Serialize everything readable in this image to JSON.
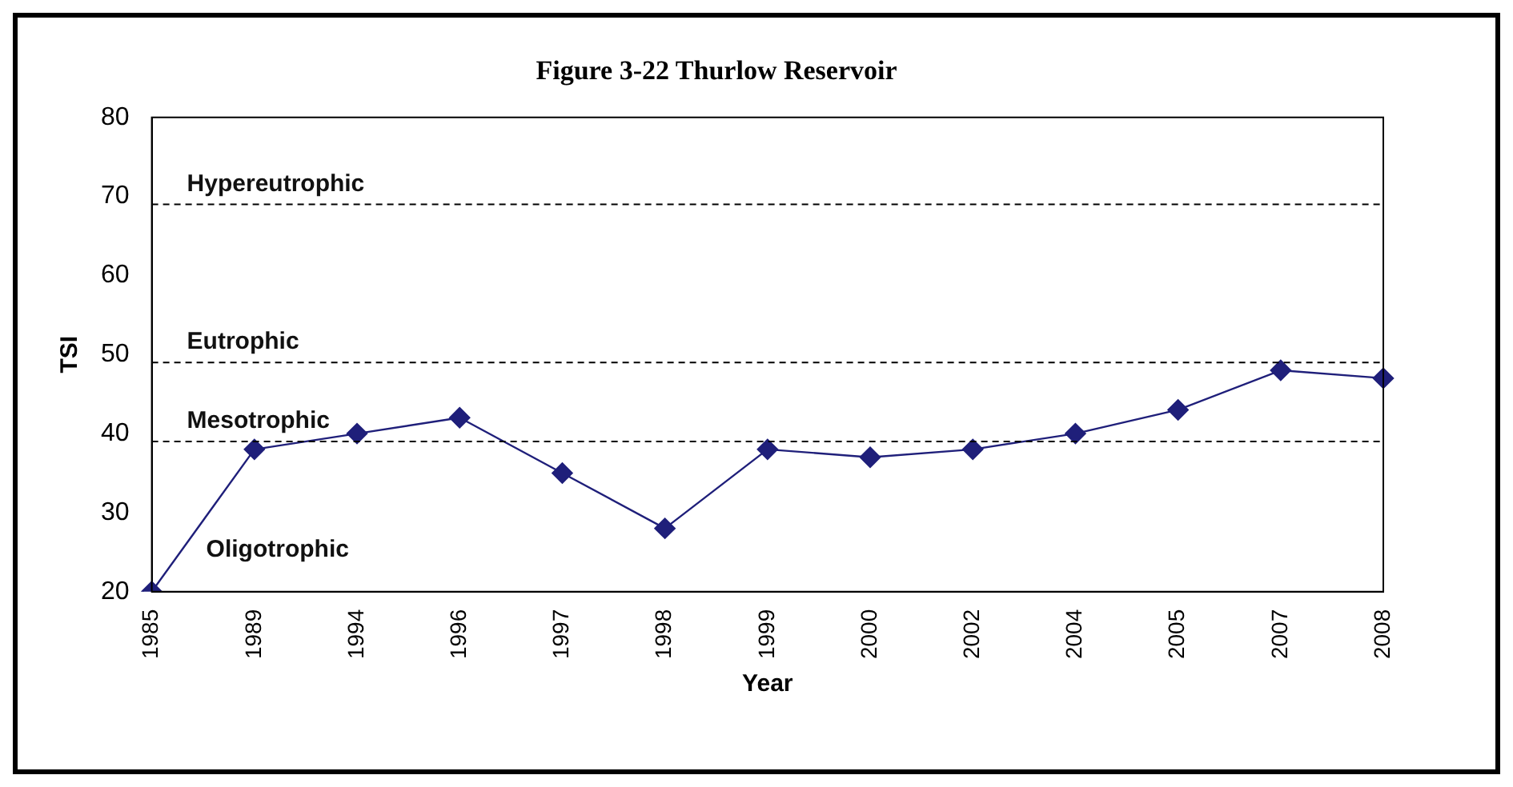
{
  "chart_data": {
    "type": "line",
    "title": "Figure 3-22 Thurlow Reservoir",
    "xlabel": "Year",
    "ylabel": "TSI",
    "categories": [
      "1985",
      "1989",
      "1994",
      "1996",
      "1997",
      "1998",
      "1999",
      "2000",
      "2002",
      "2004",
      "2005",
      "2007",
      "2008"
    ],
    "series": [
      {
        "color": "#1f1f7a",
        "values": [
          20,
          38,
          40,
          42,
          35,
          28,
          38,
          37,
          38,
          40,
          43,
          48,
          47
        ]
      }
    ],
    "ylim": [
      20,
      80
    ],
    "yticks": [
      20,
      30,
      40,
      50,
      60,
      70,
      80
    ],
    "grid": false,
    "legend": false,
    "marker": "diamond",
    "line_style": "solid",
    "ref_lines": [
      {
        "axis": "y",
        "value": 69,
        "label": "Hypereutrophic",
        "color": "#000000",
        "line_style": "dashed"
      },
      {
        "axis": "y",
        "value": 49,
        "label": "Eutrophic",
        "color": "#000000",
        "line_style": "dashed"
      },
      {
        "axis": "y",
        "value": 39,
        "label": "Mesotrophic",
        "color": "#000000",
        "line_style": "dashed"
      }
    ],
    "annotations": [
      "Oligotrophic"
    ]
  }
}
